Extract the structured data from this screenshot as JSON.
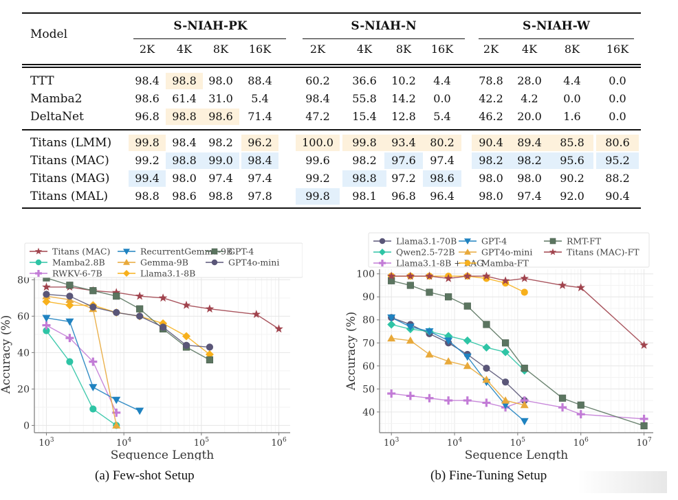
{
  "table": {
    "model_header": "Model",
    "groups": [
      "S-NIAH-PK",
      "S-NIAH-N",
      "S-NIAH-W"
    ],
    "lengths": [
      "2K",
      "4K",
      "8K",
      "16K"
    ],
    "colors": {
      "highlight_orange": "#fdf1dc",
      "highlight_blue": "#e3f0fb"
    },
    "rows": [
      {
        "model": "TTT",
        "values": [
          "98.4",
          "98.8",
          "98.0",
          "88.4",
          "60.2",
          "36.6",
          "10.2",
          "4.4",
          "78.8",
          "28.0",
          "4.4",
          "0.0"
        ],
        "hl": [
          "",
          "o",
          "",
          "",
          "",
          "",
          "",
          "",
          "",
          "",
          "",
          ""
        ]
      },
      {
        "model": "Mamba2",
        "values": [
          "98.6",
          "61.4",
          "31.0",
          "5.4",
          "98.4",
          "55.8",
          "14.2",
          "0.0",
          "42.2",
          "4.2",
          "0.0",
          "0.0"
        ],
        "hl": [
          "",
          "",
          "",
          "",
          "",
          "",
          "",
          "",
          "",
          "",
          "",
          ""
        ]
      },
      {
        "model": "DeltaNet",
        "values": [
          "96.8",
          "98.8",
          "98.6",
          "71.4",
          "47.2",
          "15.4",
          "12.8",
          "5.4",
          "46.2",
          "20.0",
          "1.6",
          "0.0"
        ],
        "hl": [
          "",
          "o",
          "o",
          "",
          "",
          "",
          "",
          "",
          "",
          "",
          "",
          ""
        ]
      },
      {
        "model": "Titans (LMM)",
        "values": [
          "99.8",
          "98.4",
          "98.2",
          "96.2",
          "100.0",
          "99.8",
          "93.4",
          "80.2",
          "90.4",
          "89.4",
          "85.8",
          "80.6"
        ],
        "hl": [
          "o",
          "",
          "",
          "o",
          "o",
          "o",
          "o",
          "o",
          "o",
          "o",
          "o",
          "o"
        ]
      },
      {
        "model": "Titans (MAC)",
        "values": [
          "99.2",
          "98.8",
          "99.0",
          "98.4",
          "99.6",
          "98.2",
          "97.6",
          "97.4",
          "98.2",
          "98.2",
          "95.6",
          "95.2"
        ],
        "hl": [
          "",
          "b",
          "b",
          "b",
          "",
          "",
          "b",
          "",
          "b",
          "b",
          "b",
          "b"
        ]
      },
      {
        "model": "Titans (MAG)",
        "values": [
          "99.4",
          "98.0",
          "97.4",
          "97.4",
          "99.2",
          "98.8",
          "97.2",
          "98.6",
          "98.0",
          "98.0",
          "90.2",
          "88.2"
        ],
        "hl": [
          "b",
          "",
          "",
          "",
          "",
          "b",
          "",
          "b",
          "",
          "",
          "",
          ""
        ]
      },
      {
        "model": "Titans (MAL)",
        "values": [
          "98.8",
          "98.6",
          "98.8",
          "97.8",
          "99.8",
          "98.1",
          "96.8",
          "96.4",
          "98.0",
          "97.4",
          "92.0",
          "90.4"
        ],
        "hl": [
          "",
          "",
          "",
          "",
          "b",
          "",
          "",
          "",
          "",
          "",
          "",
          ""
        ]
      }
    ]
  },
  "captions": {
    "a": "(a) Few-shot Setup",
    "b": "(b) Fine-Tuning Setup"
  },
  "chart_data": [
    {
      "type": "line",
      "title": "",
      "caption": "(a) Few-shot Setup",
      "xlabel": "Sequence Length",
      "ylabel": "Accuracy (%)",
      "xscale": "log",
      "xlim": [
        700,
        1400000
      ],
      "ylim": [
        -4,
        82
      ],
      "xticks": [
        1000,
        10000,
        100000,
        1000000
      ],
      "xtick_labels": [
        "10^3",
        "10^4",
        "10^5",
        "10^6"
      ],
      "yticks": [
        0,
        20,
        40,
        60,
        80
      ],
      "grid": true,
      "legend_position": "top",
      "series": [
        {
          "name": "Titans (MAC)",
          "color": "#a0434d",
          "marker": "star",
          "x": [
            1000,
            2000,
            4000,
            8000,
            16000,
            32000,
            64000,
            128000,
            512000,
            1000000
          ],
          "y": [
            76,
            76,
            74,
            73,
            71,
            70,
            66,
            64,
            61,
            53
          ]
        },
        {
          "name": "Mamba2.8B",
          "color": "#2ec4a5",
          "marker": "circle",
          "x": [
            1000,
            2000,
            4000,
            8000
          ],
          "y": [
            52,
            35,
            9,
            0
          ]
        },
        {
          "name": "RWKV-6-7B",
          "color": "#c27bd6",
          "marker": "plus",
          "x": [
            1000,
            2000,
            4000,
            8000
          ],
          "y": [
            55,
            48,
            35,
            7
          ]
        },
        {
          "name": "RecurrentGemma-9B",
          "color": "#1f82c0",
          "marker": "triangle-down",
          "x": [
            1000,
            2000,
            4000,
            8000,
            16000
          ],
          "y": [
            59,
            57,
            21,
            14,
            8
          ]
        },
        {
          "name": "Gemma-9B",
          "color": "#e8a93a",
          "marker": "triangle-up",
          "x": [
            1000,
            2000,
            4000,
            8000
          ],
          "y": [
            71,
            69,
            64,
            0
          ]
        },
        {
          "name": "Llama3.1-8B",
          "color": "#f7b01c",
          "marker": "diamond",
          "x": [
            1000,
            2000,
            4000,
            8000,
            16000,
            32000,
            64000,
            128000
          ],
          "y": [
            68,
            66,
            66,
            62,
            60,
            56,
            49,
            39
          ]
        },
        {
          "name": "GPT-4",
          "color": "#5b7560",
          "marker": "square",
          "x": [
            1000,
            2000,
            4000,
            8000,
            16000,
            32000,
            64000,
            128000
          ],
          "y": [
            81,
            77,
            74,
            71,
            64,
            53,
            43,
            36
          ]
        },
        {
          "name": "GPT4o-mini",
          "color": "#5a5678",
          "marker": "circle",
          "x": [
            1000,
            2000,
            4000,
            8000,
            16000,
            32000,
            64000,
            128000
          ],
          "y": [
            72,
            71,
            65,
            62,
            60,
            54,
            44,
            43
          ]
        }
      ]
    },
    {
      "type": "line",
      "title": "",
      "caption": "(b) Fine-Tuning Setup",
      "xlabel": "Sequence Length",
      "ylabel": "Accuracy (%)",
      "xscale": "log",
      "xlim": [
        650,
        14000000
      ],
      "ylim": [
        31,
        102
      ],
      "xticks": [
        1000,
        10000,
        100000,
        1000000,
        10000000
      ],
      "xtick_labels": [
        "10^3",
        "10^4",
        "10^5",
        "10^6",
        "10^7"
      ],
      "yticks": [
        40,
        50,
        60,
        70,
        80,
        90,
        100
      ],
      "grid": true,
      "legend_position": "top",
      "series": [
        {
          "name": "Llama3.1-70B",
          "color": "#5a5678",
          "marker": "circle",
          "x": [
            1000,
            2000,
            4000,
            8000,
            16000,
            32000,
            64000,
            128000
          ],
          "y": [
            81,
            78,
            74,
            70,
            65,
            59,
            53,
            45
          ]
        },
        {
          "name": "Qwen2.5-72B",
          "color": "#2ec4a5",
          "marker": "diamond",
          "x": [
            1000,
            2000,
            4000,
            8000,
            16000,
            32000,
            64000,
            128000
          ],
          "y": [
            78,
            76,
            75,
            73,
            71,
            68,
            66,
            58
          ]
        },
        {
          "name": "Llama3.1-8B + RAG",
          "color": "#c27bd6",
          "marker": "plus",
          "x": [
            1000,
            2000,
            4000,
            8000,
            16000,
            32000,
            64000,
            128000,
            512000,
            1000000,
            10000000
          ],
          "y": [
            48,
            47,
            46,
            45,
            45,
            44,
            42,
            45,
            42,
            39,
            37
          ]
        },
        {
          "name": "GPT-4",
          "color": "#1f82c0",
          "marker": "triangle-down",
          "x": [
            1000,
            2000,
            4000,
            8000,
            16000,
            32000,
            64000,
            128000
          ],
          "y": [
            81,
            77,
            75,
            71,
            64,
            53,
            43,
            36
          ]
        },
        {
          "name": "GPT4o-mini",
          "color": "#e8a93a",
          "marker": "triangle-up",
          "x": [
            1000,
            2000,
            4000,
            8000,
            16000,
            32000,
            64000,
            128000
          ],
          "y": [
            72,
            71,
            65,
            62,
            60,
            54,
            45,
            43
          ]
        },
        {
          "name": "Mamba-FT",
          "color": "#f7b01c",
          "marker": "circle",
          "x": [
            1000,
            2000,
            4000,
            8000,
            16000,
            32000,
            64000,
            128000
          ],
          "y": [
            99,
            99,
            99,
            99,
            99,
            98,
            96,
            92
          ]
        },
        {
          "name": "RMT-FT",
          "color": "#5b7560",
          "marker": "square",
          "x": [
            1000,
            2000,
            4000,
            8000,
            16000,
            32000,
            64000,
            128000,
            512000,
            1000000,
            10000000
          ],
          "y": [
            97,
            95,
            92,
            90,
            86,
            78,
            70,
            59,
            46,
            43,
            34
          ]
        },
        {
          "name": "Titans (MAC)-FT",
          "color": "#a0434d",
          "marker": "star",
          "x": [
            1000,
            2000,
            4000,
            8000,
            16000,
            32000,
            64000,
            128000,
            512000,
            1000000,
            10000000
          ],
          "y": [
            99,
            99,
            99,
            98,
            99,
            99,
            97,
            98,
            95,
            94,
            69
          ]
        }
      ]
    }
  ]
}
